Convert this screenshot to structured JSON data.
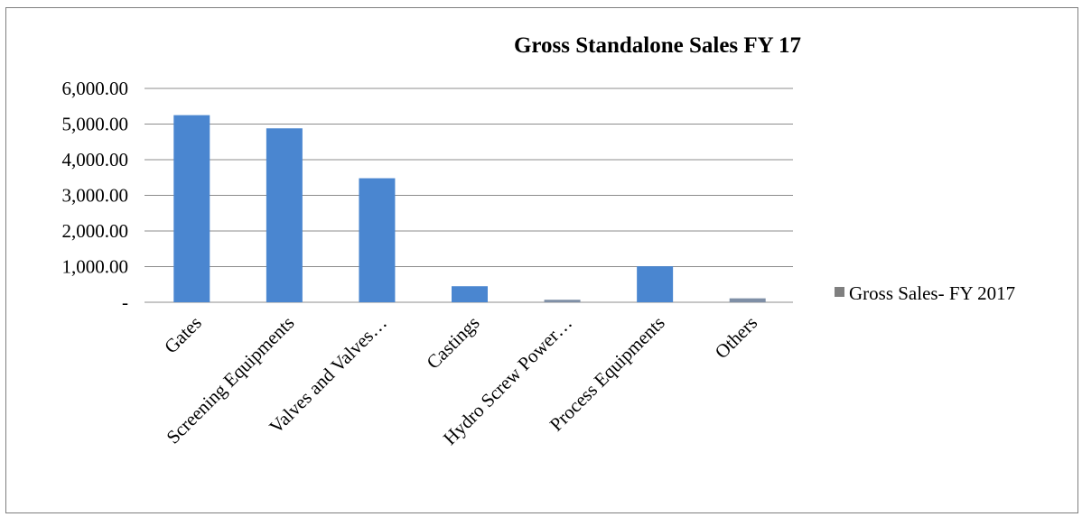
{
  "chart_data": {
    "type": "bar",
    "title": "Gross  Standalone Sales  FY 17",
    "xlabel": "",
    "ylabel": "",
    "categories": [
      "Gates",
      "Screening Equipments",
      "Valves and Valves…",
      "Castings",
      "Hydro Screw Power…",
      "Process Equipments",
      "Others"
    ],
    "series": [
      {
        "name": "Gross Sales- FY 2017",
        "values": [
          5250,
          4880,
          3480,
          450,
          70,
          1010,
          110
        ]
      }
    ],
    "ylim": [
      0,
      6000
    ],
    "y_ticks": [
      "-",
      "1,000.00",
      "2,000.00",
      "3,000.00",
      "4,000.00",
      "5,000.00",
      "6,000.00"
    ],
    "grid": true,
    "legend_position": "right",
    "colors": {
      "bar": "#4a86d0",
      "bar_small": "#7f8fa6",
      "legend_marker": "#7f7f7f",
      "grid": "#8c8c8c"
    }
  }
}
